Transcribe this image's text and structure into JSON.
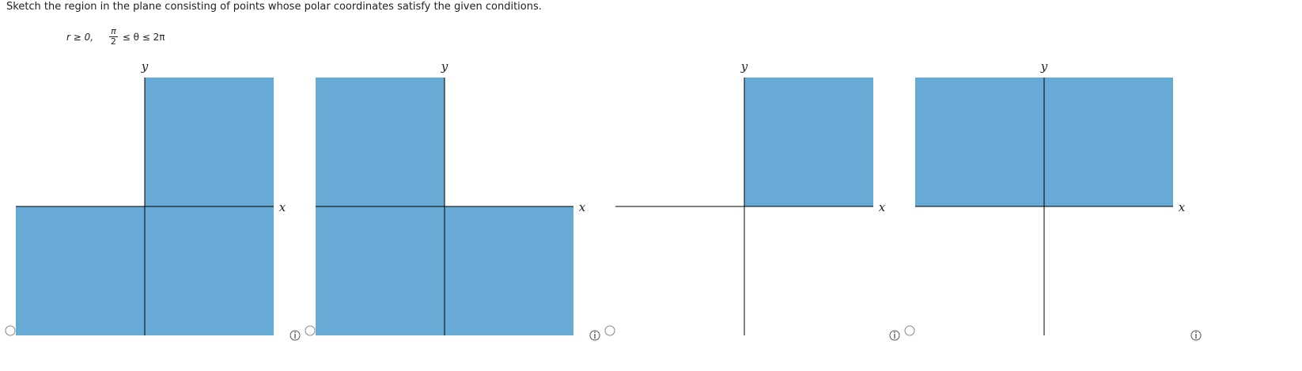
{
  "question": "Sketch the region in the plane consisting of points whose polar coordinates satisfy the given conditions.",
  "condition": {
    "r_part": "r ≥ 0,",
    "numerator": "π",
    "denominator": "2",
    "theta_part": "≤ θ ≤ 2π"
  },
  "options": [
    {
      "y_label": "y",
      "x_label": "x"
    },
    {
      "y_label": "y",
      "x_label": "x"
    },
    {
      "y_label": "y",
      "x_label": "x"
    },
    {
      "y_label": "y",
      "x_label": "x"
    }
  ]
}
